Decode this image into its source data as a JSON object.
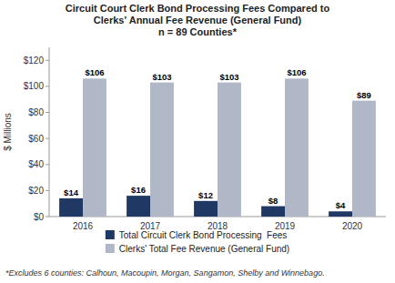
{
  "chart_data": {
    "type": "bar",
    "title": "Circuit Court Clerk Bond Processing Fees Compared to\nClerks' Annual Fee Revenue (General Fund)\nn = 89 Counties*",
    "categories": [
      "2016",
      "2017",
      "2018",
      "2019",
      "2020"
    ],
    "series": [
      {
        "name": "Total Circuit Clerk Bond Processing  Fees",
        "color": "#1F3864",
        "values": [
          14,
          16,
          12,
          8,
          4
        ],
        "value_labels": [
          "$14",
          "$16",
          "$12",
          "$8",
          "$4"
        ]
      },
      {
        "name": "Clerks' Total Fee Revenue (General Fund)",
        "color": "#B0B7C6",
        "values": [
          106,
          103,
          103,
          106,
          89
        ],
        "value_labels": [
          "$106",
          "$103",
          "$103",
          "$106",
          "$89"
        ]
      }
    ],
    "ylabel": "$ Millions",
    "ylim": [
      0,
      130
    ],
    "yticks": [
      {
        "value": 0,
        "label": "$0"
      },
      {
        "value": 20,
        "label": "$20"
      },
      {
        "value": 40,
        "label": "$40"
      },
      {
        "value": 60,
        "label": "$60"
      },
      {
        "value": 80,
        "label": "$80"
      },
      {
        "value": 100,
        "label": "$100"
      },
      {
        "value": 120,
        "label": "$120"
      }
    ],
    "grid": false,
    "data_labels": true,
    "legend": "bottom",
    "footnote": "*Excludes 6 counties: Calhoun, Macoupin, Morgan, Sangamon, Shelby and Winnebago."
  }
}
